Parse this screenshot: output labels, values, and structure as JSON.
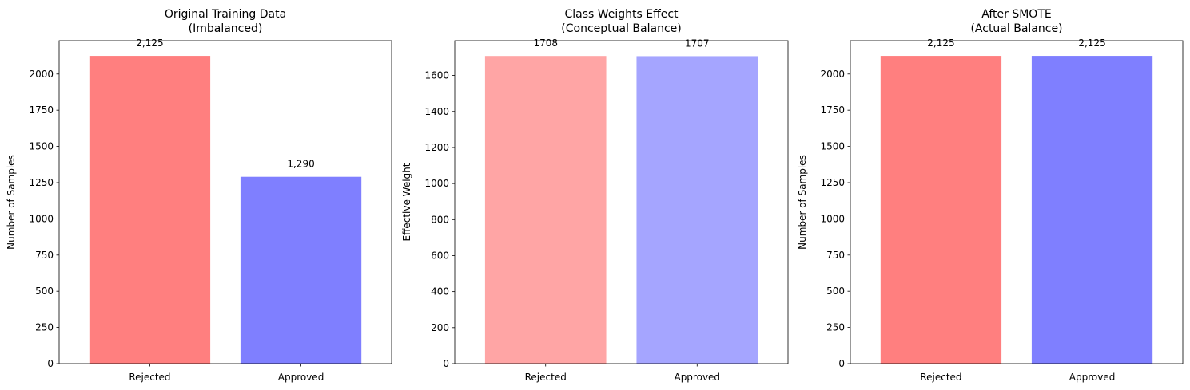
{
  "chart_data": [
    {
      "type": "bar",
      "title": "Original Training Data\n(Imbalanced)",
      "xlabel": "",
      "ylabel": "Number of Samples",
      "categories": [
        "Rejected",
        "Approved"
      ],
      "values": [
        2125,
        1290
      ],
      "value_labels": [
        "2,125",
        "1,290"
      ],
      "colors": [
        "#ff7f7f",
        "#7f7fff"
      ],
      "ylim": [
        0,
        2230
      ],
      "yticks": [
        0,
        250,
        500,
        750,
        1000,
        1250,
        1500,
        1750,
        2000
      ],
      "grid": false
    },
    {
      "type": "bar",
      "title": "Class Weights Effect\n(Conceptual Balance)",
      "xlabel": "",
      "ylabel": "Effective Weight",
      "categories": [
        "Rejected",
        "Approved"
      ],
      "values": [
        1708,
        1707
      ],
      "value_labels": [
        "1708",
        "1707"
      ],
      "colors": [
        "#ffa5a5",
        "#a5a5ff"
      ],
      "ylim": [
        0,
        1793
      ],
      "yticks": [
        0,
        200,
        400,
        600,
        800,
        1000,
        1200,
        1400,
        1600
      ],
      "grid": false
    },
    {
      "type": "bar",
      "title": "After SMOTE\n(Actual Balance)",
      "xlabel": "",
      "ylabel": "Number of Samples",
      "categories": [
        "Rejected",
        "Approved"
      ],
      "values": [
        2125,
        2125
      ],
      "value_labels": [
        "2,125",
        "2,125"
      ],
      "colors": [
        "#ff7f7f",
        "#7f7fff"
      ],
      "ylim": [
        0,
        2230
      ],
      "yticks": [
        0,
        250,
        500,
        750,
        1000,
        1250,
        1500,
        1750,
        2000
      ],
      "grid": false
    }
  ]
}
